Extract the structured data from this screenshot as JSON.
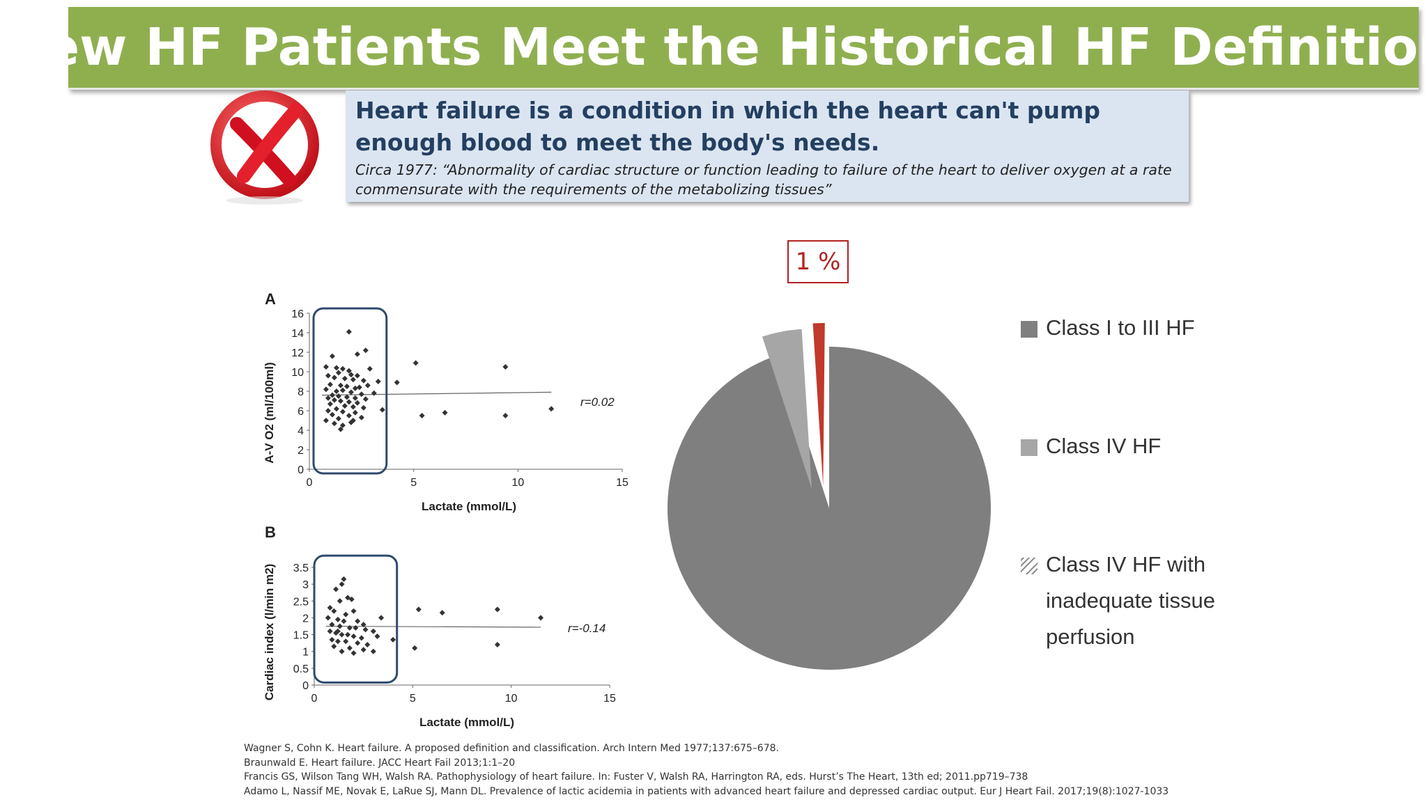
{
  "title": "Few HF Patients Meet the Historical HF Definition:",
  "icons": {
    "definition": "red-x-icon"
  },
  "definition": {
    "main": "Heart failure is a condition in which the heart can't pump enough blood to meet the body's needs.",
    "quote": "Circa 1977: “Abnormality of cardiac structure or function leading to failure of the heart to deliver oxygen at a rate commensurate with the requirements of the metabolizing tissues”"
  },
  "chart_data": [
    {
      "type": "scatter",
      "panel_label": "A",
      "title": "",
      "xlabel": "Lactate (mmol/L)",
      "ylabel": "A-V O2 (ml/100ml)",
      "xlim": [
        0,
        15
      ],
      "ylim": [
        0,
        16
      ],
      "xticks": [
        0,
        5,
        10,
        15
      ],
      "yticks": [
        0,
        2,
        4,
        6,
        8,
        10,
        12,
        14,
        16
      ],
      "annotation": "r=0.02",
      "trendline": [
        [
          0.6,
          7.6
        ],
        [
          11.6,
          7.9
        ]
      ],
      "highlight_box": {
        "x_range": [
          0.2,
          3.7
        ],
        "y_range": [
          0,
          16.5
        ]
      },
      "points": [
        [
          1.9,
          14.1
        ],
        [
          2.7,
          12.2
        ],
        [
          2.3,
          11.8
        ],
        [
          1.1,
          11.6
        ],
        [
          5.1,
          10.9
        ],
        [
          9.4,
          10.5
        ],
        [
          0.8,
          10.5
        ],
        [
          1.3,
          10.4
        ],
        [
          1.6,
          10.3
        ],
        [
          1.9,
          10.1
        ],
        [
          2.9,
          10.3
        ],
        [
          1.4,
          9.9
        ],
        [
          2.0,
          9.7
        ],
        [
          2.3,
          9.6
        ],
        [
          0.9,
          9.6
        ],
        [
          1.2,
          9.4
        ],
        [
          1.7,
          9.3
        ],
        [
          2.1,
          9.2
        ],
        [
          2.6,
          9.1
        ],
        [
          3.3,
          9.0
        ],
        [
          4.2,
          8.9
        ],
        [
          2.8,
          8.6
        ],
        [
          1.0,
          8.7
        ],
        [
          1.5,
          8.6
        ],
        [
          1.8,
          8.5
        ],
        [
          2.2,
          8.3
        ],
        [
          2.4,
          8.4
        ],
        [
          0.8,
          8.2
        ],
        [
          1.3,
          8.0
        ],
        [
          1.6,
          8.1
        ],
        [
          2.0,
          7.9
        ],
        [
          2.5,
          7.7
        ],
        [
          3.1,
          7.8
        ],
        [
          1.1,
          7.6
        ],
        [
          1.4,
          7.5
        ],
        [
          1.8,
          7.4
        ],
        [
          2.2,
          7.3
        ],
        [
          2.7,
          7.2
        ],
        [
          0.9,
          7.3
        ],
        [
          1.2,
          7.1
        ],
        [
          1.5,
          7.0
        ],
        [
          1.9,
          6.9
        ],
        [
          2.3,
          6.8
        ],
        [
          1.0,
          6.7
        ],
        [
          1.7,
          6.5
        ],
        [
          2.1,
          6.4
        ],
        [
          2.6,
          6.3
        ],
        [
          1.3,
          6.2
        ],
        [
          3.5,
          6.1
        ],
        [
          0.9,
          6.0
        ],
        [
          1.6,
          5.9
        ],
        [
          2.2,
          5.8
        ],
        [
          6.5,
          5.8
        ],
        [
          11.6,
          6.2
        ],
        [
          5.4,
          5.5
        ],
        [
          9.4,
          5.5
        ],
        [
          1.1,
          5.6
        ],
        [
          1.9,
          5.5
        ],
        [
          2.5,
          5.3
        ],
        [
          1.4,
          5.2
        ],
        [
          0.8,
          5.0
        ],
        [
          2.1,
          5.0
        ],
        [
          2.0,
          4.8
        ],
        [
          1.2,
          4.7
        ],
        [
          1.6,
          4.5
        ],
        [
          1.5,
          4.1
        ]
      ]
    },
    {
      "type": "scatter",
      "panel_label": "B",
      "title": "",
      "xlabel": "Lactate (mmol/L)",
      "ylabel": "Cardiac index (l/min m2)",
      "xlim": [
        0,
        15
      ],
      "ylim": [
        0,
        3.5
      ],
      "xticks": [
        0,
        5,
        10,
        15
      ],
      "yticks": [
        0,
        0.5,
        1,
        1.5,
        2,
        2.5,
        3,
        3.5
      ],
      "annotation": "r=-0.14",
      "trendline": [
        [
          0.6,
          1.75
        ],
        [
          11.5,
          1.72
        ]
      ],
      "highlight_box": {
        "x_range": [
          0.0,
          4.2
        ],
        "y_range": [
          0.2,
          3.85
        ]
      },
      "points": [
        [
          1.5,
          3.15
        ],
        [
          1.4,
          3.0
        ],
        [
          1.1,
          2.85
        ],
        [
          1.7,
          2.6
        ],
        [
          1.9,
          2.55
        ],
        [
          1.3,
          2.5
        ],
        [
          5.3,
          2.25
        ],
        [
          6.5,
          2.15
        ],
        [
          9.3,
          2.25
        ],
        [
          11.5,
          2.0
        ],
        [
          0.8,
          2.3
        ],
        [
          1.0,
          2.2
        ],
        [
          1.6,
          2.1
        ],
        [
          2.0,
          2.2
        ],
        [
          3.4,
          2.0
        ],
        [
          0.7,
          2.0
        ],
        [
          1.2,
          1.95
        ],
        [
          1.5,
          1.9
        ],
        [
          2.2,
          1.9
        ],
        [
          2.5,
          1.8
        ],
        [
          0.9,
          1.8
        ],
        [
          1.3,
          1.75
        ],
        [
          1.8,
          1.7
        ],
        [
          2.1,
          1.7
        ],
        [
          2.6,
          1.65
        ],
        [
          3.0,
          1.6
        ],
        [
          0.8,
          1.6
        ],
        [
          1.1,
          1.55
        ],
        [
          1.4,
          1.5
        ],
        [
          1.7,
          1.5
        ],
        [
          2.0,
          1.45
        ],
        [
          2.4,
          1.4
        ],
        [
          3.2,
          1.45
        ],
        [
          0.9,
          1.35
        ],
        [
          1.2,
          1.3
        ],
        [
          1.6,
          1.3
        ],
        [
          2.2,
          1.25
        ],
        [
          2.7,
          1.2
        ],
        [
          1.0,
          1.15
        ],
        [
          1.8,
          1.1
        ],
        [
          2.5,
          1.05
        ],
        [
          1.4,
          1.0
        ],
        [
          2.0,
          0.95
        ],
        [
          4.0,
          1.35
        ],
        [
          5.1,
          1.1
        ],
        [
          9.3,
          1.2
        ],
        [
          3.0,
          1.0
        ],
        [
          1.2,
          1.6
        ]
      ]
    },
    {
      "type": "pie",
      "title": "",
      "annotation": "1 %",
      "slices": [
        {
          "label": "Class I to III HF",
          "value": 95,
          "color": "#7f7f7f"
        },
        {
          "label": "Class IV HF",
          "value": 4,
          "color": "#a6a6a6"
        },
        {
          "label": "Class IV HF with inadequate tissue perfusion",
          "value": 1,
          "color": "#c0392b"
        }
      ],
      "legend_position": "right"
    }
  ],
  "references": [
    "Wagner S, Cohn K. Heart failure. A proposed definition and classification. Arch Intern Med 1977;137:675–678.",
    "Braunwald E. Heart failure. JACC Heart Fail 2013;1:1–20",
    "Francis GS, Wilson Tang WH, Walsh RA. Pathophysiology of heart failure. In: Fuster V, Walsh RA, Harrington RA, eds. Hurst’s The Heart, 13th ed; 2011.pp719–738",
    "Adamo L, Nassif ME, Novak E, LaRue SJ, Mann DL. Prevalence of lactic acidemia in patients with advanced heart failure and depressed cardiac output. Eur J Heart Fail. 2017;19(8):1027-1033"
  ]
}
